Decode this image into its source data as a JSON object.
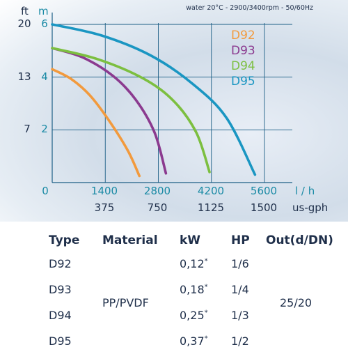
{
  "chart_data": {
    "type": "line",
    "subtitle": "water 20°C - 2900/3400rpm - 50/60Hz",
    "x_unit_primary": "l / h",
    "x_unit_secondary": "us-gph",
    "x_ticks_lh": [
      "1400",
      "2800",
      "4200",
      "5600"
    ],
    "x_ticks_gph": [
      "375",
      "750",
      "1125",
      "1500"
    ],
    "x_zero": "0",
    "y_unit_ft": "ft",
    "y_unit_m": "m",
    "y_ticks_ft": [
      "7",
      "13",
      "20"
    ],
    "y_ticks_m": [
      "2",
      "4",
      "6"
    ],
    "xlim": [
      0,
      5600
    ],
    "ylim": [
      0,
      6
    ],
    "grid": true,
    "legend_position": "top-right",
    "series": [
      {
        "name": "D92",
        "color": "#f29a3d",
        "x": [
          0,
          500,
          1000,
          1500,
          2000,
          2300
        ],
        "y": [
          4.3,
          3.93,
          3.3,
          2.35,
          1.2,
          0.25
        ]
      },
      {
        "name": "D93",
        "color": "#8b3a8f",
        "x": [
          0,
          800,
          1600,
          2200,
          2700,
          3000
        ],
        "y": [
          5.1,
          4.75,
          4.05,
          3.15,
          1.9,
          0.35
        ]
      },
      {
        "name": "D94",
        "color": "#7cbf40",
        "x": [
          0,
          1200,
          2400,
          3200,
          3800,
          4150
        ],
        "y": [
          5.1,
          4.68,
          3.95,
          3.1,
          1.9,
          0.4
        ]
      },
      {
        "name": "D95",
        "color": "#1a96c2",
        "x": [
          0,
          1300,
          2600,
          3700,
          4600,
          5350
        ],
        "y": [
          6.0,
          5.58,
          4.82,
          3.75,
          2.45,
          0.3
        ]
      }
    ]
  },
  "table": {
    "headers": [
      "Type",
      "Material",
      "kW",
      "HP",
      "Out(d/DN)"
    ],
    "material": "PP/PVDF",
    "out": "25/20",
    "star": "*",
    "rows": [
      {
        "type": "D92",
        "kw": "0,12",
        "hp": "1/6"
      },
      {
        "type": "D93",
        "kw": "0,18",
        "hp": "1/4"
      },
      {
        "type": "D94",
        "kw": "0,25",
        "hp": "1/3"
      },
      {
        "type": "D95",
        "kw": "0,37",
        "hp": "1/2"
      }
    ]
  }
}
